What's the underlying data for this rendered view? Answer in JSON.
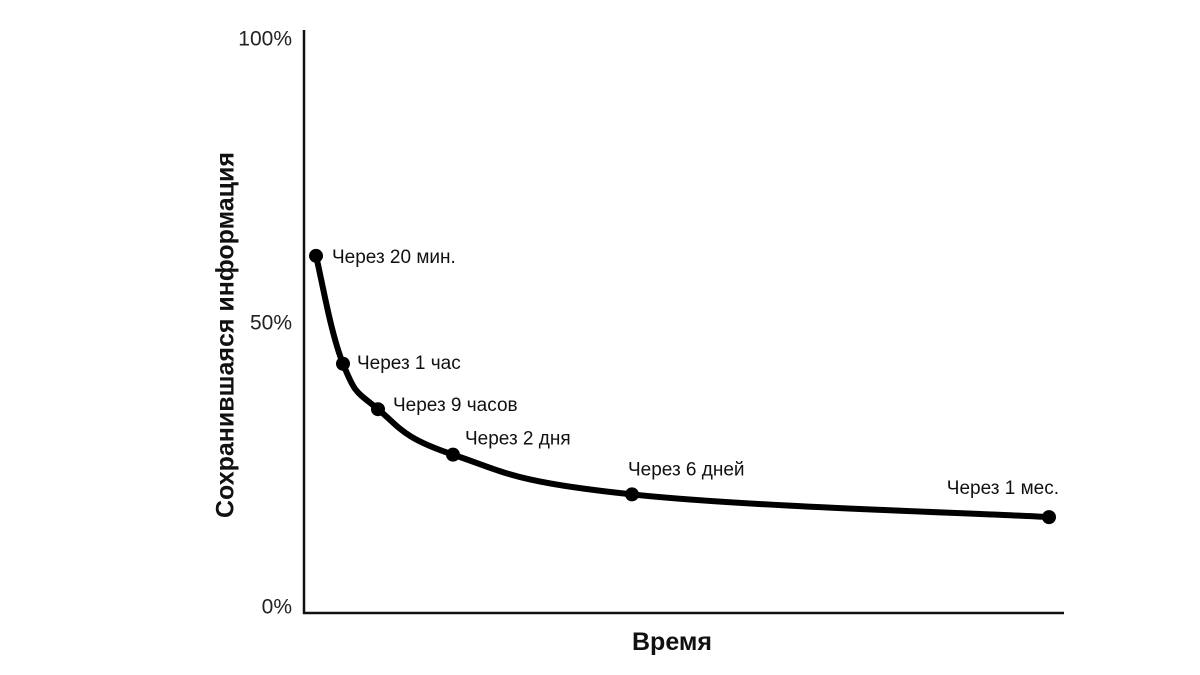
{
  "chart_data": {
    "type": "line",
    "title": "",
    "xlabel": "Время",
    "ylabel": "Сохранившаяся информация",
    "ylim": [
      0,
      100
    ],
    "y_ticks": [
      {
        "value": 0,
        "label": "0%"
      },
      {
        "value": 50,
        "label": "50%"
      },
      {
        "value": 100,
        "label": "100%"
      }
    ],
    "grid": false,
    "legend": "none",
    "x_ticks_shown": false,
    "series": [
      {
        "points": [
          {
            "label": "Через 20 мин.",
            "y": 62
          },
          {
            "label": "Через 1 час",
            "y": 43
          },
          {
            "label": "Через 9 часов",
            "y": 35
          },
          {
            "label": "Через 2 дня",
            "y": 27
          },
          {
            "label": "Через 6 дней",
            "y": 20
          },
          {
            "label": "Через 1 мес.",
            "y": 16
          }
        ]
      }
    ],
    "colors": {
      "line": "#000000",
      "axis": "#111111",
      "text": "#111111"
    }
  }
}
